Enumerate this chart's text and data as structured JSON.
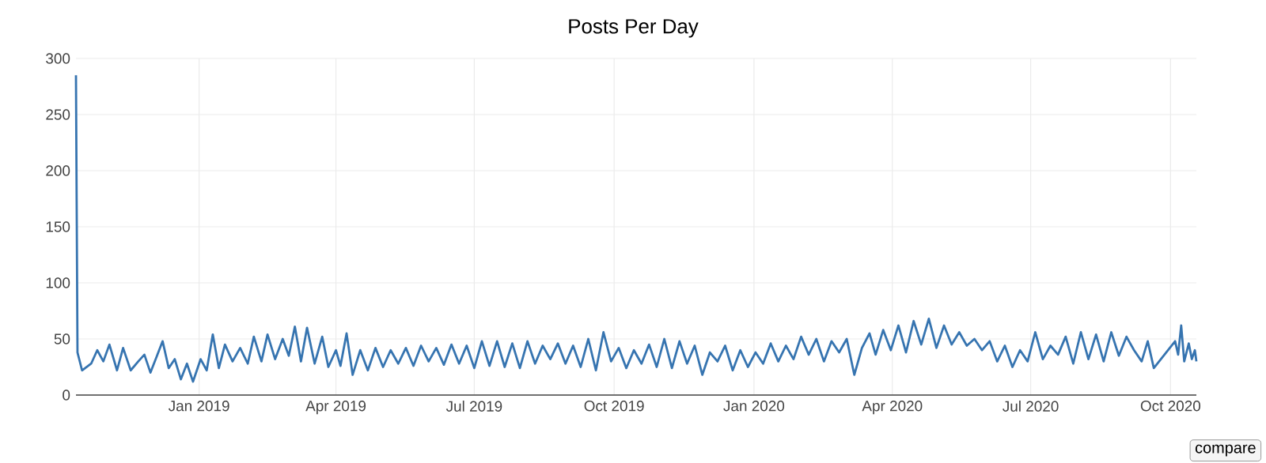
{
  "chart_data": {
    "type": "line",
    "title": "Posts Per Day",
    "color": "#3674b0",
    "grid": true,
    "marker": "none",
    "line_style": "solid",
    "xlim": [
      "2018-10-12",
      "2020-10-18"
    ],
    "xticks": [
      {
        "value": "2019-01-01",
        "label": "Jan 2019"
      },
      {
        "value": "2019-04-01",
        "label": "Apr 2019"
      },
      {
        "value": "2019-07-01",
        "label": "Jul 2019"
      },
      {
        "value": "2019-10-01",
        "label": "Oct 2019"
      },
      {
        "value": "2020-01-01",
        "label": "Jan 2020"
      },
      {
        "value": "2020-04-01",
        "label": "Apr 2020"
      },
      {
        "value": "2020-07-01",
        "label": "Jul 2020"
      },
      {
        "value": "2020-10-01",
        "label": "Oct 2020"
      }
    ],
    "ylim": [
      0,
      300
    ],
    "yticks": [
      0,
      50,
      100,
      150,
      200,
      250,
      300
    ],
    "x": [
      "2018-10-12",
      "2018-10-13",
      "2018-10-16",
      "2018-10-22",
      "2018-10-26",
      "2018-10-30",
      "2018-11-03",
      "2018-11-08",
      "2018-11-12",
      "2018-11-17",
      "2018-11-22",
      "2018-11-26",
      "2018-11-30",
      "2018-12-04",
      "2018-12-08",
      "2018-12-12",
      "2018-12-16",
      "2018-12-20",
      "2018-12-24",
      "2018-12-28",
      "2019-01-02",
      "2019-01-06",
      "2019-01-10",
      "2019-01-14",
      "2019-01-18",
      "2019-01-23",
      "2019-01-28",
      "2019-02-02",
      "2019-02-06",
      "2019-02-11",
      "2019-02-15",
      "2019-02-20",
      "2019-02-25",
      "2019-03-01",
      "2019-03-05",
      "2019-03-09",
      "2019-03-13",
      "2019-03-18",
      "2019-03-23",
      "2019-03-27",
      "2019-04-01",
      "2019-04-04",
      "2019-04-08",
      "2019-04-12",
      "2019-04-17",
      "2019-04-22",
      "2019-04-27",
      "2019-05-02",
      "2019-05-07",
      "2019-05-12",
      "2019-05-17",
      "2019-05-22",
      "2019-05-27",
      "2019-06-01",
      "2019-06-06",
      "2019-06-11",
      "2019-06-16",
      "2019-06-21",
      "2019-06-26",
      "2019-07-01",
      "2019-07-06",
      "2019-07-11",
      "2019-07-16",
      "2019-07-21",
      "2019-07-26",
      "2019-07-31",
      "2019-08-05",
      "2019-08-10",
      "2019-08-15",
      "2019-08-20",
      "2019-08-25",
      "2019-08-30",
      "2019-09-04",
      "2019-09-09",
      "2019-09-14",
      "2019-09-19",
      "2019-09-24",
      "2019-09-29",
      "2019-10-04",
      "2019-10-09",
      "2019-10-14",
      "2019-10-19",
      "2019-10-24",
      "2019-10-29",
      "2019-11-03",
      "2019-11-08",
      "2019-11-13",
      "2019-11-18",
      "2019-11-23",
      "2019-11-28",
      "2019-12-03",
      "2019-12-08",
      "2019-12-13",
      "2019-12-18",
      "2019-12-23",
      "2019-12-28",
      "2020-01-02",
      "2020-01-07",
      "2020-01-12",
      "2020-01-17",
      "2020-01-22",
      "2020-01-27",
      "2020-02-01",
      "2020-02-06",
      "2020-02-11",
      "2020-02-16",
      "2020-02-21",
      "2020-02-26",
      "2020-03-02",
      "2020-03-07",
      "2020-03-12",
      "2020-03-17",
      "2020-03-21",
      "2020-03-26",
      "2020-03-31",
      "2020-04-05",
      "2020-04-10",
      "2020-04-15",
      "2020-04-20",
      "2020-04-25",
      "2020-04-30",
      "2020-05-05",
      "2020-05-10",
      "2020-05-15",
      "2020-05-20",
      "2020-05-25",
      "2020-05-30",
      "2020-06-04",
      "2020-06-09",
      "2020-06-14",
      "2020-06-19",
      "2020-06-24",
      "2020-06-29",
      "2020-07-04",
      "2020-07-09",
      "2020-07-14",
      "2020-07-19",
      "2020-07-24",
      "2020-07-29",
      "2020-08-03",
      "2020-08-08",
      "2020-08-13",
      "2020-08-18",
      "2020-08-23",
      "2020-08-28",
      "2020-09-02",
      "2020-09-07",
      "2020-09-12",
      "2020-09-16",
      "2020-09-20",
      "2020-10-04",
      "2020-10-06",
      "2020-10-08",
      "2020-10-10",
      "2020-10-13",
      "2020-10-15",
      "2020-10-17",
      "2020-10-18"
    ],
    "values": [
      285,
      38,
      22,
      28,
      40,
      30,
      45,
      22,
      42,
      22,
      30,
      36,
      20,
      34,
      48,
      24,
      32,
      14,
      28,
      12,
      32,
      22,
      54,
      24,
      45,
      30,
      42,
      28,
      52,
      30,
      54,
      32,
      50,
      35,
      61,
      30,
      60,
      28,
      52,
      25,
      40,
      26,
      55,
      18,
      40,
      22,
      42,
      25,
      40,
      28,
      42,
      26,
      44,
      30,
      42,
      27,
      45,
      28,
      44,
      24,
      48,
      26,
      48,
      25,
      46,
      24,
      48,
      28,
      44,
      32,
      46,
      28,
      44,
      25,
      50,
      22,
      56,
      30,
      42,
      24,
      40,
      28,
      45,
      25,
      50,
      24,
      48,
      28,
      44,
      18,
      38,
      30,
      44,
      22,
      40,
      25,
      38,
      28,
      46,
      30,
      44,
      32,
      52,
      36,
      50,
      30,
      48,
      38,
      50,
      18,
      42,
      55,
      36,
      58,
      40,
      62,
      38,
      66,
      45,
      68,
      42,
      62,
      45,
      56,
      44,
      50,
      40,
      48,
      30,
      44,
      25,
      40,
      30,
      56,
      32,
      44,
      36,
      52,
      28,
      56,
      32,
      54,
      30,
      56,
      35,
      52,
      40,
      30,
      48,
      24,
      48,
      36,
      62,
      30,
      46,
      32,
      40,
      30
    ],
    "annotations": [
      "compare"
    ]
  }
}
